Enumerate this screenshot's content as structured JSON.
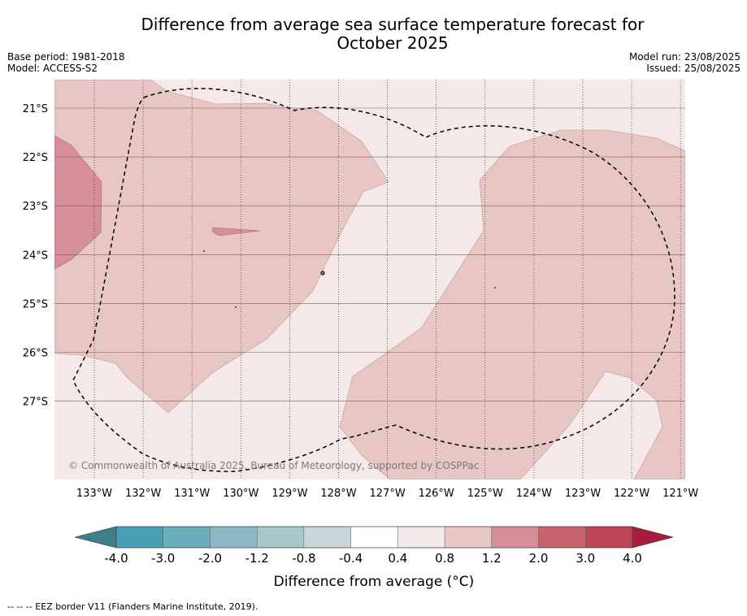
{
  "title": "Difference from average sea surface temperature forecast for October 2025",
  "title_line1": "Difference from average sea surface temperature forecast for",
  "title_line2": "October 2025",
  "base_period": "Base period: 1981-2018",
  "model": "Model: ACCESS-S2",
  "model_run": "Model run: 23/08/2025",
  "issued": "Issued: 25/08/2025",
  "copyright": "© Commonwealth of Australia 2025, Bureau of Meteorology, supported by COSPPac",
  "footnote": "--  --  -- EEZ border V11 (Flanders Marine Institute, 2019).",
  "map": {
    "lat_labels": [
      "21°S",
      "22°S",
      "23°S",
      "24°S",
      "25°S",
      "26°S",
      "27°S"
    ],
    "lon_labels": [
      "133°W",
      "132°W",
      "131°W",
      "130°W",
      "129°W",
      "128°W",
      "127°W",
      "126°W",
      "125°W",
      "124°W",
      "123°W",
      "122°W",
      "121°W"
    ],
    "colors": {
      "band_0_4_to_0_8": "#f5e8e8",
      "band_0_8_to_1_2": "#e8c6c3",
      "band_1_2_to_2_0": "#d68f98",
      "eez_border": "#000000"
    }
  },
  "colorbar": {
    "title": "Difference from average (°C)",
    "ticks": [
      "-4.0",
      "-3.0",
      "-2.0",
      "-1.2",
      "-0.8",
      "-0.4",
      "0.4",
      "0.8",
      "1.2",
      "2.0",
      "3.0",
      "4.0"
    ],
    "colors": [
      "#3d7f8a",
      "#47a0b3",
      "#6aadbd",
      "#8bb8c4",
      "#a8c7cd",
      "#cbd8db",
      "#ffffff",
      "#f5e8e8",
      "#e8c6c3",
      "#d68f98",
      "#c9646f",
      "#bd4656",
      "#a81d3d"
    ]
  }
}
